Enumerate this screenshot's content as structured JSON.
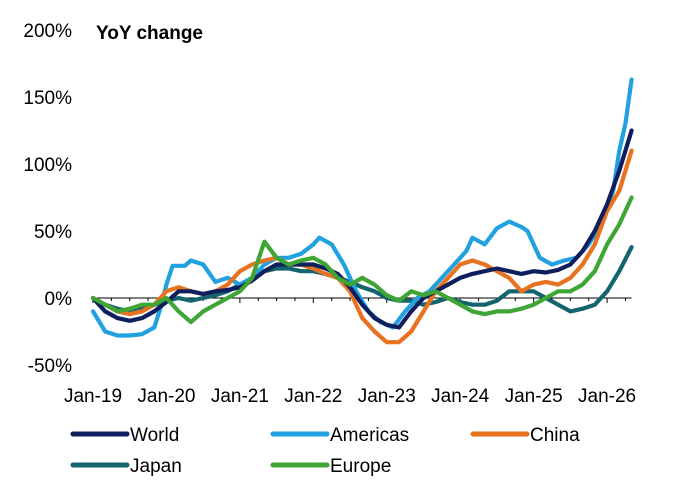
{
  "chart_data": {
    "type": "line",
    "title": "YoY change",
    "xlabel": "",
    "ylabel": "",
    "ylim": [
      -50,
      200
    ],
    "y_ticks": [
      -50,
      0,
      50,
      100,
      150,
      200
    ],
    "y_tick_labels": [
      "-50%",
      "0%",
      "50%",
      "100%",
      "150%",
      "200%"
    ],
    "x_tick_labels": [
      "Jan-19",
      "Jan-20",
      "Jan-21",
      "Jan-22",
      "Jan-23",
      "Jan-24",
      "Jan-25",
      "Jan-26"
    ],
    "x_start": "2019-01",
    "x_end": "2026-05",
    "grid": false,
    "legend_position": "bottom",
    "series": [
      {
        "name": "World",
        "color": "#0f1f5e",
        "points": [
          [
            0,
            0
          ],
          [
            2,
            -10
          ],
          [
            4,
            -15
          ],
          [
            6,
            -17
          ],
          [
            8,
            -15
          ],
          [
            10,
            -10
          ],
          [
            12,
            -3
          ],
          [
            14,
            5
          ],
          [
            16,
            5
          ],
          [
            18,
            3
          ],
          [
            20,
            5
          ],
          [
            22,
            6
          ],
          [
            24,
            8
          ],
          [
            26,
            13
          ],
          [
            28,
            20
          ],
          [
            30,
            25
          ],
          [
            32,
            25
          ],
          [
            34,
            25
          ],
          [
            36,
            25
          ],
          [
            38,
            22
          ],
          [
            40,
            18
          ],
          [
            42,
            8
          ],
          [
            44,
            -5
          ],
          [
            46,
            -15
          ],
          [
            48,
            -20
          ],
          [
            50,
            -22
          ],
          [
            52,
            -10
          ],
          [
            54,
            0
          ],
          [
            56,
            5
          ],
          [
            58,
            10
          ],
          [
            60,
            15
          ],
          [
            62,
            18
          ],
          [
            64,
            20
          ],
          [
            66,
            22
          ],
          [
            68,
            20
          ],
          [
            70,
            18
          ],
          [
            72,
            20
          ],
          [
            74,
            19
          ],
          [
            76,
            21
          ],
          [
            78,
            25
          ],
          [
            80,
            35
          ],
          [
            82,
            50
          ],
          [
            84,
            70
          ],
          [
            86,
            95
          ],
          [
            88,
            125
          ]
        ]
      },
      {
        "name": "Americas",
        "color": "#21a1e0",
        "points": [
          [
            0,
            -10
          ],
          [
            2,
            -25
          ],
          [
            4,
            -28
          ],
          [
            6,
            -28
          ],
          [
            8,
            -27
          ],
          [
            10,
            -22
          ],
          [
            11,
            -8
          ],
          [
            12,
            10
          ],
          [
            13,
            24
          ],
          [
            15,
            24
          ],
          [
            16,
            28
          ],
          [
            18,
            25
          ],
          [
            20,
            12
          ],
          [
            22,
            15
          ],
          [
            24,
            10
          ],
          [
            26,
            15
          ],
          [
            28,
            25
          ],
          [
            30,
            30
          ],
          [
            32,
            30
          ],
          [
            34,
            33
          ],
          [
            36,
            40
          ],
          [
            37,
            45
          ],
          [
            39,
            40
          ],
          [
            41,
            25
          ],
          [
            43,
            5
          ],
          [
            45,
            -10
          ],
          [
            47,
            -18
          ],
          [
            49,
            -22
          ],
          [
            51,
            -10
          ],
          [
            53,
            0
          ],
          [
            55,
            5
          ],
          [
            57,
            15
          ],
          [
            59,
            25
          ],
          [
            61,
            35
          ],
          [
            62,
            45
          ],
          [
            64,
            40
          ],
          [
            66,
            52
          ],
          [
            68,
            57
          ],
          [
            70,
            53
          ],
          [
            71,
            50
          ],
          [
            73,
            30
          ],
          [
            75,
            25
          ],
          [
            77,
            28
          ],
          [
            79,
            30
          ],
          [
            81,
            40
          ],
          [
            83,
            55
          ],
          [
            85,
            80
          ],
          [
            86,
            110
          ],
          [
            87,
            130
          ],
          [
            88,
            163
          ]
        ]
      },
      {
        "name": "China",
        "color": "#e8721f",
        "points": [
          [
            0,
            0
          ],
          [
            2,
            -5
          ],
          [
            4,
            -10
          ],
          [
            6,
            -12
          ],
          [
            8,
            -10
          ],
          [
            10,
            -5
          ],
          [
            12,
            5
          ],
          [
            14,
            8
          ],
          [
            16,
            5
          ],
          [
            18,
            3
          ],
          [
            20,
            5
          ],
          [
            22,
            10
          ],
          [
            24,
            20
          ],
          [
            26,
            25
          ],
          [
            28,
            28
          ],
          [
            30,
            30
          ],
          [
            32,
            25
          ],
          [
            34,
            25
          ],
          [
            36,
            22
          ],
          [
            38,
            18
          ],
          [
            40,
            15
          ],
          [
            42,
            5
          ],
          [
            44,
            -15
          ],
          [
            46,
            -25
          ],
          [
            48,
            -33
          ],
          [
            50,
            -33
          ],
          [
            52,
            -25
          ],
          [
            54,
            -10
          ],
          [
            56,
            5
          ],
          [
            58,
            15
          ],
          [
            60,
            25
          ],
          [
            62,
            28
          ],
          [
            64,
            25
          ],
          [
            66,
            20
          ],
          [
            68,
            15
          ],
          [
            70,
            5
          ],
          [
            72,
            10
          ],
          [
            74,
            12
          ],
          [
            76,
            10
          ],
          [
            78,
            15
          ],
          [
            80,
            25
          ],
          [
            82,
            40
          ],
          [
            84,
            65
          ],
          [
            86,
            80
          ],
          [
            88,
            110
          ]
        ]
      },
      {
        "name": "Japan",
        "color": "#14646e",
        "points": [
          [
            0,
            0
          ],
          [
            2,
            -5
          ],
          [
            4,
            -8
          ],
          [
            6,
            -10
          ],
          [
            8,
            -8
          ],
          [
            10,
            -5
          ],
          [
            12,
            -2
          ],
          [
            14,
            0
          ],
          [
            16,
            -2
          ],
          [
            18,
            0
          ],
          [
            20,
            2
          ],
          [
            22,
            5
          ],
          [
            24,
            10
          ],
          [
            26,
            15
          ],
          [
            28,
            20
          ],
          [
            30,
            22
          ],
          [
            32,
            22
          ],
          [
            34,
            20
          ],
          [
            36,
            20
          ],
          [
            38,
            18
          ],
          [
            40,
            15
          ],
          [
            42,
            12
          ],
          [
            44,
            8
          ],
          [
            46,
            5
          ],
          [
            48,
            0
          ],
          [
            50,
            -2
          ],
          [
            52,
            -2
          ],
          [
            54,
            -5
          ],
          [
            56,
            -3
          ],
          [
            58,
            0
          ],
          [
            60,
            -3
          ],
          [
            62,
            -5
          ],
          [
            64,
            -5
          ],
          [
            66,
            -2
          ],
          [
            68,
            5
          ],
          [
            70,
            5
          ],
          [
            72,
            5
          ],
          [
            74,
            0
          ],
          [
            76,
            -5
          ],
          [
            78,
            -10
          ],
          [
            80,
            -8
          ],
          [
            82,
            -5
          ],
          [
            84,
            5
          ],
          [
            86,
            20
          ],
          [
            88,
            38
          ]
        ]
      },
      {
        "name": "Europe",
        "color": "#3fa535",
        "points": [
          [
            0,
            0
          ],
          [
            2,
            -5
          ],
          [
            4,
            -10
          ],
          [
            6,
            -8
          ],
          [
            8,
            -5
          ],
          [
            10,
            -5
          ],
          [
            12,
            0
          ],
          [
            14,
            -10
          ],
          [
            16,
            -18
          ],
          [
            18,
            -10
          ],
          [
            20,
            -5
          ],
          [
            22,
            0
          ],
          [
            24,
            5
          ],
          [
            26,
            15
          ],
          [
            28,
            42
          ],
          [
            30,
            30
          ],
          [
            32,
            25
          ],
          [
            34,
            28
          ],
          [
            36,
            30
          ],
          [
            38,
            25
          ],
          [
            40,
            15
          ],
          [
            42,
            10
          ],
          [
            44,
            15
          ],
          [
            46,
            10
          ],
          [
            48,
            2
          ],
          [
            50,
            -2
          ],
          [
            52,
            5
          ],
          [
            54,
            2
          ],
          [
            56,
            5
          ],
          [
            58,
            0
          ],
          [
            60,
            -5
          ],
          [
            62,
            -10
          ],
          [
            64,
            -12
          ],
          [
            66,
            -10
          ],
          [
            68,
            -10
          ],
          [
            70,
            -8
          ],
          [
            72,
            -5
          ],
          [
            74,
            0
          ],
          [
            76,
            5
          ],
          [
            78,
            5
          ],
          [
            80,
            10
          ],
          [
            82,
            20
          ],
          [
            84,
            40
          ],
          [
            86,
            55
          ],
          [
            88,
            75
          ]
        ]
      }
    ]
  }
}
